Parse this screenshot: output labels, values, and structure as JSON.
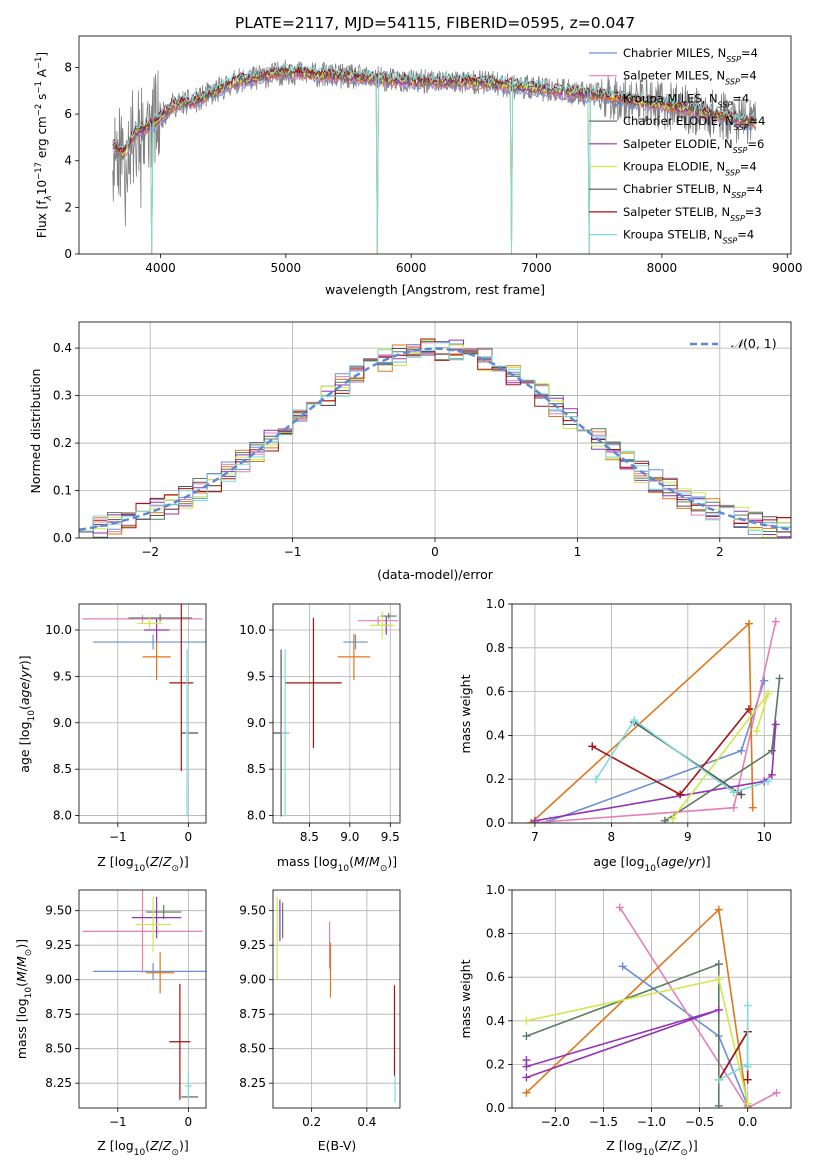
{
  "figure_title": "PLATE=2117, MJD=54115, FIBERID=0595, z=0.047",
  "palette": {
    "Chabrier MILES": "#6a8fd6",
    "Salpeter MILES": "#e67fb8",
    "Kroupa MILES": "#e0761a",
    "Chabrier ELODIE": "#5b7c5e",
    "Salpeter ELODIE": "#9333b5",
    "Kroupa ELODIE": "#cfe94a",
    "Chabrier STELIB": "#555555",
    "Salpeter STELIB": "#a51212",
    "Kroupa STELIB": "#7fd9dd",
    "data": "#808080",
    "normal": "#5b87d6"
  },
  "chart_data": [
    {
      "id": "spectrum",
      "type": "line",
      "xlabel": "wavelength [Angstrom, rest frame]",
      "ylabel": "Flux [f_λ10^-17 erg cm^-2 s^-1 A^-1]",
      "xlim": [
        3350,
        9030
      ],
      "ylim": [
        0,
        9.35
      ],
      "xticks": [
        4000,
        5000,
        6000,
        7000,
        8000,
        9000
      ],
      "yticks": [
        0,
        2,
        4,
        6,
        8
      ],
      "grid": false,
      "legend_position": "upper right",
      "legend": [
        {
          "name": "Chabrier MILES",
          "nssp": "4"
        },
        {
          "name": "Salpeter MILES",
          "nssp": "4"
        },
        {
          "name": "Kroupa MILES",
          "nssp": "4"
        },
        {
          "name": "Chabrier ELODIE",
          "nssp": "4"
        },
        {
          "name": "Salpeter ELODIE",
          "nssp": "6"
        },
        {
          "name": "Kroupa ELODIE",
          "nssp": "4"
        },
        {
          "name": "Chabrier STELIB",
          "nssp": "4"
        },
        {
          "name": "Salpeter STELIB",
          "nssp": "3"
        },
        {
          "name": "Kroupa STELIB",
          "nssp": "4"
        }
      ],
      "data_wavelength_range": [
        3620,
        8750
      ],
      "continuum": [
        [
          3620,
          4.7
        ],
        [
          3700,
          4.3
        ],
        [
          3800,
          5.2
        ],
        [
          3950,
          5.6
        ],
        [
          4100,
          6.4
        ],
        [
          4300,
          6.6
        ],
        [
          4600,
          7.4
        ],
        [
          5000,
          7.8
        ],
        [
          5500,
          7.6
        ],
        [
          6000,
          7.4
        ],
        [
          6500,
          7.4
        ],
        [
          7000,
          7.1
        ],
        [
          7500,
          6.8
        ],
        [
          8000,
          6.4
        ],
        [
          8500,
          5.9
        ],
        [
          8750,
          5.6
        ]
      ],
      "absorption_dips": [
        {
          "wavelength": 3930,
          "depth_to": 0.0
        },
        {
          "wavelength": 5730,
          "depth_to": 0.0
        },
        {
          "wavelength": 6800,
          "depth_to": 0.0
        },
        {
          "wavelength": 7420,
          "depth_to": 0.0
        }
      ]
    },
    {
      "id": "residuals",
      "type": "line",
      "xlabel": "(data-model)/error",
      "ylabel": "Normed distribution",
      "xlim": [
        -2.5,
        2.5
      ],
      "ylim": [
        0,
        0.455
      ],
      "xticks": [
        -2,
        -1,
        0,
        1,
        2
      ],
      "yticks": [
        0.0,
        0.1,
        0.2,
        0.3,
        0.4
      ],
      "grid": true,
      "legend_position": "upper right",
      "legend": [
        {
          "name": "N(0,1)",
          "style": "dashed"
        }
      ],
      "bin_width": 0.1
    },
    {
      "id": "age_vs_z",
      "type": "scatter",
      "xlabel": "Z [log10(Z/Z⊙)]",
      "ylabel": "age [log10(age/yr)]",
      "xlim": [
        -1.55,
        0.25
      ],
      "ylim": [
        7.92,
        10.28
      ],
      "xticks": [
        -1,
        0
      ],
      "yticks": [
        8.0,
        8.5,
        9.0,
        9.5,
        10.0
      ],
      "grid": true,
      "points": [
        {
          "series": "Chabrier MILES",
          "x": -0.5,
          "y": 9.87,
          "xerr": 0.85,
          "yerr": 0.08
        },
        {
          "series": "Salpeter MILES",
          "x": -0.65,
          "y": 10.12,
          "xerr": 0.85,
          "yerr": 0.04
        },
        {
          "series": "Kroupa MILES",
          "x": -0.45,
          "y": 9.71,
          "xerr": 0.2,
          "yerr": 0.25
        },
        {
          "series": "Chabrier ELODIE",
          "x": -0.4,
          "y": 10.13,
          "xerr": 0.45,
          "yerr": 0.04
        },
        {
          "series": "Salpeter ELODIE",
          "x": -0.45,
          "y": 10.0,
          "xerr": 0.18,
          "yerr": 0.12
        },
        {
          "series": "Kroupa ELODIE",
          "x": -0.55,
          "y": 10.07,
          "xerr": 0.18,
          "yerr": 0.06
        },
        {
          "series": "Chabrier STELIB",
          "x": 0.02,
          "y": 8.89,
          "xerr": 0.12,
          "yerr": 0.0
        },
        {
          "series": "Salpeter STELIB",
          "x": -0.1,
          "y": 9.43,
          "xerr": 0.17,
          "yerr": 0.95
        },
        {
          "series": "Kroupa STELIB",
          "x": -0.02,
          "y": 8.89,
          "xerr": 0.02,
          "yerr": 0.9
        }
      ]
    },
    {
      "id": "age_vs_mass",
      "type": "scatter",
      "xlabel": "mass [log10(M/M⊙)]",
      "ylabel": "",
      "xlim": [
        8.05,
        9.62
      ],
      "ylim": [
        7.92,
        10.28
      ],
      "xticks": [
        8.5,
        9.0,
        9.5
      ],
      "yticks": [
        8.0,
        8.5,
        9.0,
        9.5,
        10.0
      ],
      "grid": true,
      "points": [
        {
          "series": "Chabrier MILES",
          "x": 9.07,
          "y": 9.87,
          "xerr": 0.15,
          "yerr": 0.08
        },
        {
          "series": "Salpeter MILES",
          "x": 9.35,
          "y": 10.1,
          "xerr": 0.25,
          "yerr": 0.05
        },
        {
          "series": "Kroupa MILES",
          "x": 9.05,
          "y": 9.71,
          "xerr": 0.2,
          "yerr": 0.25
        },
        {
          "series": "Chabrier ELODIE",
          "x": 9.48,
          "y": 10.15,
          "xerr": 0.1,
          "yerr": 0.03
        },
        {
          "series": "Salpeter ELODIE",
          "x": 9.45,
          "y": 10.05,
          "xerr": 0.05,
          "yerr": 0.1
        },
        {
          "series": "Kroupa ELODIE",
          "x": 9.4,
          "y": 10.05,
          "xerr": 0.15,
          "yerr": 0.15
        },
        {
          "series": "Chabrier STELIB",
          "x": 8.15,
          "y": 8.89,
          "xerr": 0.1,
          "yerr": 0.9
        },
        {
          "series": "Salpeter STELIB",
          "x": 8.55,
          "y": 9.43,
          "xerr": 0.35,
          "yerr": 0.7
        },
        {
          "series": "Kroupa STELIB",
          "x": 8.2,
          "y": 8.89,
          "xerr": 0.05,
          "yerr": 0.9
        }
      ]
    },
    {
      "id": "weight_vs_age",
      "type": "line",
      "xlabel": "age [log10(age/yr)]",
      "ylabel": "mass weight",
      "xlim": [
        6.7,
        10.35
      ],
      "ylim": [
        0.0,
        1.0
      ],
      "xticks": [
        7,
        8,
        9,
        10
      ],
      "yticks": [
        0.0,
        0.2,
        0.4,
        0.6,
        0.8,
        1.0
      ],
      "grid": true,
      "series": [
        {
          "name": "Chabrier MILES",
          "x": [
            7.2,
            9.7,
            10.0
          ],
          "y": [
            0.01,
            0.33,
            0.65
          ]
        },
        {
          "name": "Salpeter MILES",
          "x": [
            6.95,
            9.6,
            10.15
          ],
          "y": [
            0.0,
            0.07,
            0.92
          ]
        },
        {
          "name": "Kroupa MILES",
          "x": [
            6.95,
            9.8,
            9.85
          ],
          "y": [
            0.0,
            0.91,
            0.07
          ]
        },
        {
          "name": "Chabrier ELODIE",
          "x": [
            8.7,
            10.1,
            10.2
          ],
          "y": [
            0.01,
            0.33,
            0.66
          ]
        },
        {
          "name": "Salpeter ELODIE",
          "x": [
            7.0,
            10.0,
            10.1,
            10.15
          ],
          "y": [
            0.01,
            0.19,
            0.22,
            0.45
          ]
        },
        {
          "name": "Kroupa ELODIE",
          "x": [
            8.8,
            10.05,
            9.9
          ],
          "y": [
            0.02,
            0.59,
            0.42
          ]
        },
        {
          "name": "Chabrier STELIB",
          "x": [
            8.3,
            9.7
          ],
          "y": [
            0.46,
            0.13
          ]
        },
        {
          "name": "Salpeter STELIB",
          "x": [
            7.75,
            8.9,
            9.8
          ],
          "y": [
            0.35,
            0.13,
            0.52
          ]
        },
        {
          "name": "Kroupa STELIB",
          "x": [
            7.8,
            8.3,
            9.6,
            10.05
          ],
          "y": [
            0.2,
            0.47,
            0.14,
            0.19
          ]
        }
      ]
    },
    {
      "id": "mass_vs_z",
      "type": "scatter",
      "xlabel": "Z [log10(Z/Z⊙)]",
      "ylabel": "mass [log10(M/M⊙)]",
      "xlim": [
        -1.55,
        0.25
      ],
      "ylim": [
        8.07,
        9.65
      ],
      "xticks": [
        -1,
        0
      ],
      "yticks": [
        8.25,
        8.5,
        8.75,
        9.0,
        9.25,
        9.5
      ],
      "grid": true,
      "points": [
        {
          "series": "Chabrier MILES",
          "x": -0.5,
          "y": 9.06,
          "xerr": 0.85,
          "yerr": 0.06
        },
        {
          "series": "Salpeter MILES",
          "x": -0.65,
          "y": 9.35,
          "xerr": 0.85,
          "yerr": 0.3
        },
        {
          "series": "Kroupa MILES",
          "x": -0.4,
          "y": 9.05,
          "xerr": 0.2,
          "yerr": 0.15
        },
        {
          "series": "Chabrier ELODIE",
          "x": -0.35,
          "y": 9.49,
          "xerr": 0.25,
          "yerr": 0.05
        },
        {
          "series": "Salpeter ELODIE",
          "x": -0.45,
          "y": 9.45,
          "xerr": 0.35,
          "yerr": 0.15
        },
        {
          "series": "Kroupa ELODIE",
          "x": -0.5,
          "y": 9.4,
          "xerr": 0.25,
          "yerr": 0.2
        },
        {
          "series": "Chabrier STELIB",
          "x": 0.02,
          "y": 8.15,
          "xerr": 0.12,
          "yerr": 0.0
        },
        {
          "series": "Salpeter STELIB",
          "x": -0.12,
          "y": 8.55,
          "xerr": 0.15,
          "yerr": 0.42
        },
        {
          "series": "Kroupa STELIB",
          "x": 0.0,
          "y": 8.23,
          "xerr": 0.05,
          "yerr": 0.1
        }
      ]
    },
    {
      "id": "mass_vs_ebv",
      "type": "scatter",
      "xlabel": "E(B-V)",
      "ylabel": "",
      "xlim": [
        0.06,
        0.52
      ],
      "ylim": [
        8.07,
        9.65
      ],
      "xticks": [
        0.2,
        0.4
      ],
      "yticks": [
        8.25,
        8.5,
        8.75,
        9.0,
        9.25,
        9.5
      ],
      "grid": true,
      "points": [
        {
          "series": "Kroupa ELODIE",
          "x": 0.075,
          "y": 9.3,
          "xerr": 0,
          "yerr": 0.3
        },
        {
          "series": "Salpeter ELODIE",
          "x": 0.085,
          "y": 9.43,
          "xerr": 0,
          "yerr": 0.15
        },
        {
          "series": "Chabrier ELODIE",
          "x": 0.095,
          "y": 9.43,
          "xerr": 0,
          "yerr": 0.13
        },
        {
          "series": "Salpeter MILES",
          "x": 0.265,
          "y": 9.25,
          "xerr": 0,
          "yerr": 0.17
        },
        {
          "series": "Kroupa MILES",
          "x": 0.268,
          "y": 9.07,
          "xerr": 0,
          "yerr": 0.2
        },
        {
          "series": "Salpeter STELIB",
          "x": 0.5,
          "y": 8.63,
          "xerr": 0,
          "yerr": 0.33
        },
        {
          "series": "Kroupa STELIB",
          "x": 0.502,
          "y": 8.21,
          "xerr": 0,
          "yerr": 0.1
        }
      ]
    },
    {
      "id": "weight_vs_z",
      "type": "line",
      "xlabel": "Z [log10(Z/Z⊙)]",
      "ylabel": "mass weight",
      "xlim": [
        -2.45,
        0.45
      ],
      "ylim": [
        0.0,
        1.0
      ],
      "xticks": [
        -2.0,
        -1.5,
        -1.0,
        -0.5,
        0.0
      ],
      "yticks": [
        0.0,
        0.2,
        0.4,
        0.6,
        0.8,
        1.0
      ],
      "grid": true,
      "series": [
        {
          "name": "Chabrier MILES",
          "x": [
            -1.3,
            -0.3,
            0.0
          ],
          "y": [
            0.65,
            0.33,
            0.01
          ]
        },
        {
          "name": "Salpeter MILES",
          "x": [
            -1.33,
            0.0,
            0.3
          ],
          "y": [
            0.92,
            0.0,
            0.07
          ]
        },
        {
          "name": "Kroupa MILES",
          "x": [
            -2.3,
            -0.3,
            0.0
          ],
          "y": [
            0.07,
            0.91,
            0.0
          ]
        },
        {
          "name": "Chabrier ELODIE",
          "x": [
            -2.3,
            -0.3,
            -0.3
          ],
          "y": [
            0.33,
            0.66,
            0.01
          ]
        },
        {
          "name": "Salpeter ELODIE",
          "x": [
            -2.3,
            -0.3,
            -2.3,
            -2.3
          ],
          "y": [
            0.14,
            0.45,
            0.19,
            0.22
          ]
        },
        {
          "name": "Kroupa ELODIE",
          "x": [
            -2.3,
            -0.3,
            0.0
          ],
          "y": [
            0.4,
            0.59,
            0.02
          ]
        },
        {
          "name": "Chabrier STELIB",
          "x": [
            -0.3,
            0.0
          ],
          "y": [
            0.13,
            0.35
          ]
        },
        {
          "name": "Salpeter STELIB",
          "x": [
            -0.3,
            0.0,
            0.0
          ],
          "y": [
            0.13,
            0.35,
            0.13
          ]
        },
        {
          "name": "Kroupa STELIB",
          "x": [
            -0.3,
            0.0,
            0.0,
            0.0
          ],
          "y": [
            0.13,
            0.2,
            0.47,
            0.19
          ]
        }
      ]
    }
  ]
}
